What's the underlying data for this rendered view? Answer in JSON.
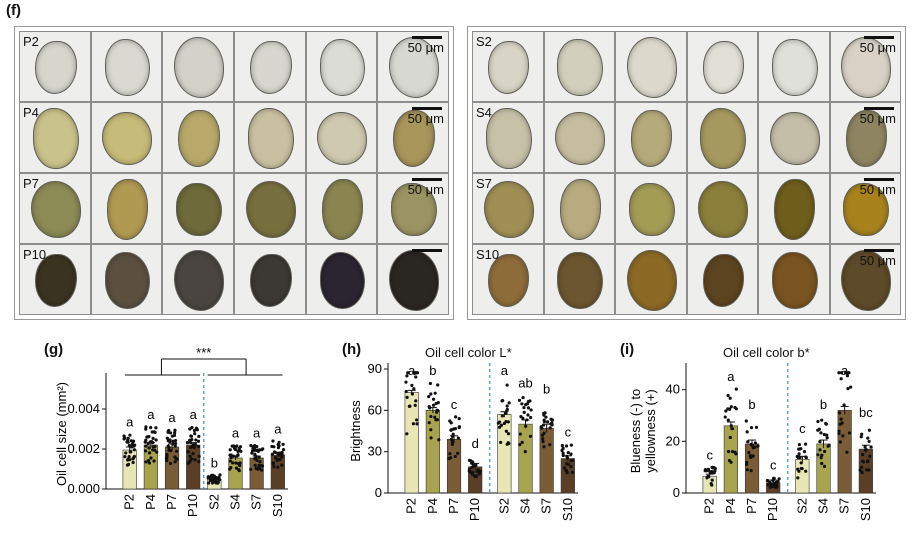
{
  "panels": {
    "f": "(f)",
    "g": "(g)",
    "h": "(h)",
    "i": "(i)"
  },
  "micrographs": {
    "scale_label": "50 μm",
    "P": {
      "rows": [
        "P2",
        "P4",
        "P7",
        "P10"
      ],
      "colors": [
        [
          "#d6d6cf",
          "#d9d9d2",
          "#d2d2ca",
          "#d7d7d0",
          "#dcdcd6",
          "#d8d8d2"
        ],
        [
          "#c9c28a",
          "#c6bb78",
          "#b8a86a",
          "#c8c0a0",
          "#cfc9b0",
          "#a8955a"
        ],
        [
          "#8c8a55",
          "#b09a52",
          "#6e6a3a",
          "#77703e",
          "#8a8550",
          "#9a9462"
        ],
        [
          "#3a3322",
          "#5b5040",
          "#4a4540",
          "#3c3834",
          "#2a2530",
          "#2a2622"
        ]
      ]
    },
    "S": {
      "rows": [
        "S2",
        "S4",
        "S7",
        "S10"
      ],
      "colors": [
        [
          "#d9d5c6",
          "#d3cfbd",
          "#dcd9cc",
          "#e1e0d8",
          "#e0e0da",
          "#d8d2c6"
        ],
        [
          "#c7c1a8",
          "#c5bd9e",
          "#b5aa7a",
          "#a6995f",
          "#c3bea8",
          "#8e8560"
        ],
        [
          "#a08f55",
          "#b7ab7f",
          "#a29c55",
          "#8a7e3a",
          "#6e5e1c",
          "#a8831d"
        ],
        [
          "#8e6c3a",
          "#6c5630",
          "#8c6a25",
          "#5d4420",
          "#7a5420",
          "#5d4a28"
        ]
      ]
    }
  },
  "chart_data": [
    {
      "id": "g",
      "type": "bar",
      "title": "",
      "ylabel": "Oil cell size (mm²)",
      "categories": [
        "P2",
        "P4",
        "P7",
        "P10",
        "S2",
        "S4",
        "S7",
        "S10"
      ],
      "values": [
        0.00195,
        0.0022,
        0.0021,
        0.0022,
        0.0005,
        0.00155,
        0.00155,
        0.0017
      ],
      "errors": [
        0.00015,
        0.00012,
        0.00015,
        0.00012,
        5e-05,
        0.0001,
        0.0001,
        0.0001
      ],
      "letters": [
        "a",
        "a",
        "a",
        "a",
        "b",
        "a",
        "a",
        "a"
      ],
      "ylim": [
        0,
        0.0055
      ],
      "yticks": [
        0,
        0.002,
        0.004
      ],
      "ytick_labels": [
        "0.000",
        "0.002",
        "0.004"
      ],
      "colors": [
        "#e8e6b4",
        "#a8a34e",
        "#7a5c36",
        "#5a3e26",
        "#e8e6b4",
        "#a8a34e",
        "#7a5c36",
        "#5a3e26"
      ],
      "significance": "***",
      "points_per_group": 32
    },
    {
      "id": "h",
      "type": "bar",
      "title": "Oil cell color L*",
      "ylabel": "Brightness",
      "categories": [
        "P2",
        "P4",
        "P7",
        "P10",
        "S2",
        "S4",
        "S7",
        "S10"
      ],
      "values": [
        73,
        60,
        39,
        19,
        57,
        50,
        47,
        25
      ],
      "errors": [
        1.5,
        2,
        2.5,
        2.5,
        2,
        3,
        3,
        2
      ],
      "letters": [
        "a",
        "b",
        "c",
        "d",
        "a",
        "ab",
        "b",
        "c"
      ],
      "ylim": [
        0,
        90
      ],
      "yticks": [
        0,
        30,
        60,
        90
      ],
      "ytick_labels": [
        "0",
        "30",
        "60",
        "90"
      ],
      "colors": [
        "#e8e6b4",
        "#a8a34e",
        "#7a5c36",
        "#5a3e26",
        "#e8e6b4",
        "#a8a34e",
        "#7a5c36",
        "#5a3e26"
      ],
      "points_per_group": 22
    },
    {
      "id": "i",
      "type": "bar",
      "title": "Oil cell color b*",
      "ylabel_line1": "Blueness (-) to",
      "ylabel_line2": "yellowness (+)",
      "categories": [
        "P2",
        "P4",
        "P7",
        "P10",
        "S2",
        "S4",
        "S7",
        "S10"
      ],
      "values": [
        6.5,
        26,
        19,
        4,
        13,
        19,
        32,
        17
      ],
      "errors": [
        0.8,
        1.5,
        1.5,
        1,
        1.2,
        1.5,
        1.5,
        1.5
      ],
      "letters": [
        "c",
        "a",
        "b",
        "c",
        "c",
        "b",
        "a",
        "bc"
      ],
      "ylim": [
        0,
        48
      ],
      "yticks": [
        0,
        20,
        40
      ],
      "ytick_labels": [
        "0",
        "20",
        "40"
      ],
      "colors": [
        "#e8e6b4",
        "#a8a34e",
        "#7a5c36",
        "#5a3e26",
        "#e8e6b4",
        "#a8a34e",
        "#7a5c36",
        "#5a3e26"
      ],
      "points_per_group": 20
    }
  ]
}
